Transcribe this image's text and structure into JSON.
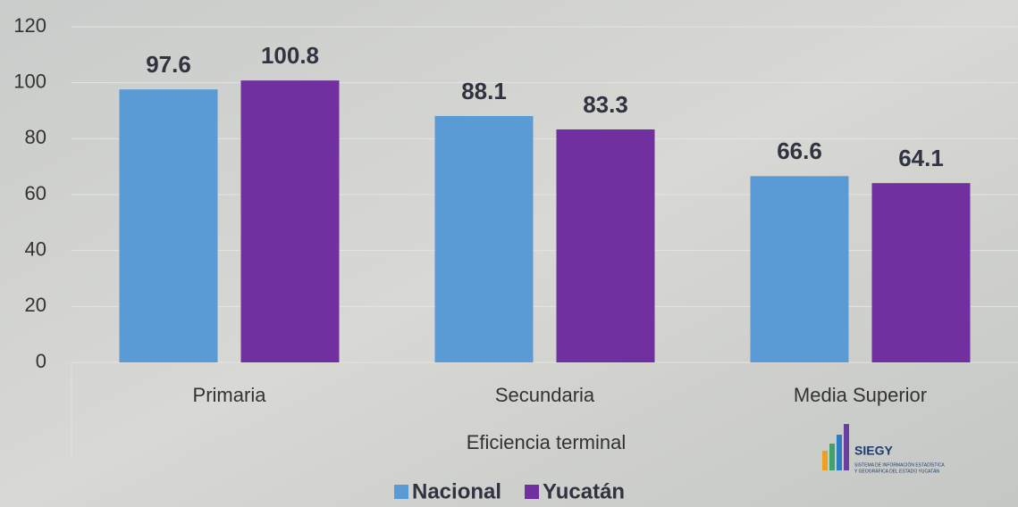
{
  "chart_data": {
    "type": "bar",
    "x_label": "Eficiencia terminal",
    "categories": [
      "Primaria",
      "Secundaria",
      "Media Superior"
    ],
    "series": [
      {
        "name": "Nacional",
        "color": "#5b9bd5",
        "values": [
          97.6,
          88.1,
          66.6
        ]
      },
      {
        "name": "Yucatán",
        "color": "#7030a0",
        "values": [
          100.8,
          83.3,
          64.1
        ]
      }
    ],
    "ylim": [
      0,
      120
    ],
    "yticks": [
      0,
      20,
      40,
      60,
      80,
      100,
      120
    ],
    "grid": true,
    "legend": "bottom"
  },
  "logo": {
    "title": "SIEGY",
    "line1": "SISTEMA DE INFORMACIÓN ESTADÍSTICA",
    "line2": "Y GEOGRÁFICA DEL ESTADO YUCATÁN"
  }
}
